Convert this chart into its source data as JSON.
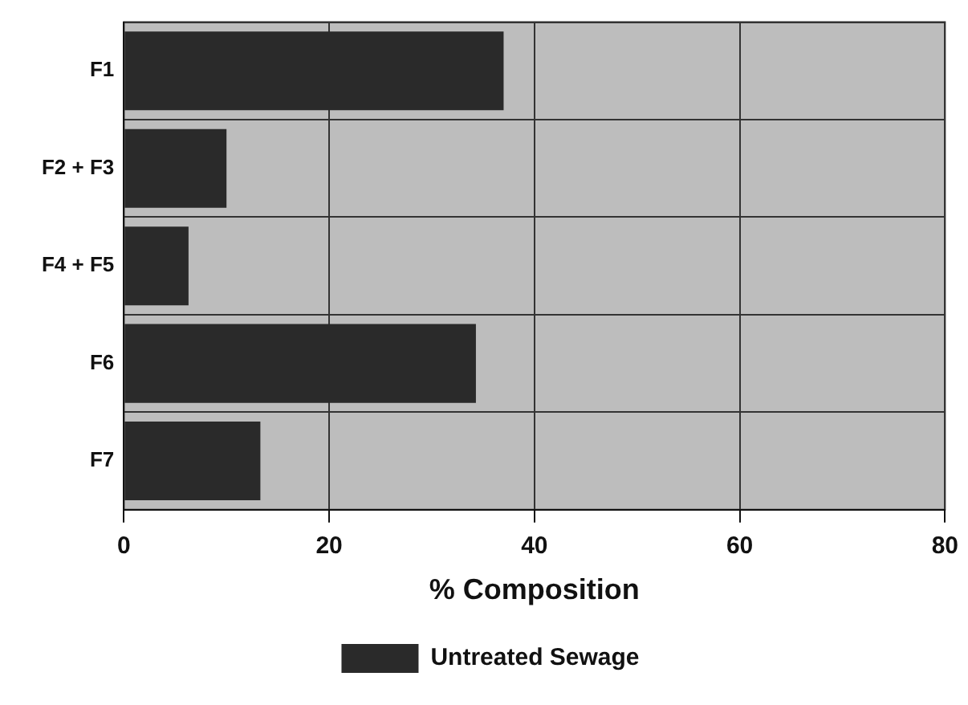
{
  "chart_data": {
    "type": "bar",
    "orientation": "horizontal",
    "xlabel": "% Composition",
    "categories": [
      "F1",
      "F2 + F3",
      "F4 + F5",
      "F6",
      "F7"
    ],
    "series": [
      {
        "name": "Untreated Sewage",
        "color": "#2a2a2a",
        "values": [
          37,
          10,
          6.3,
          34.3,
          13.3
        ]
      }
    ],
    "xlim": [
      0,
      80
    ],
    "xticks": [
      0,
      20,
      40,
      60,
      80
    ],
    "grid": true,
    "legend": "bottom"
  }
}
